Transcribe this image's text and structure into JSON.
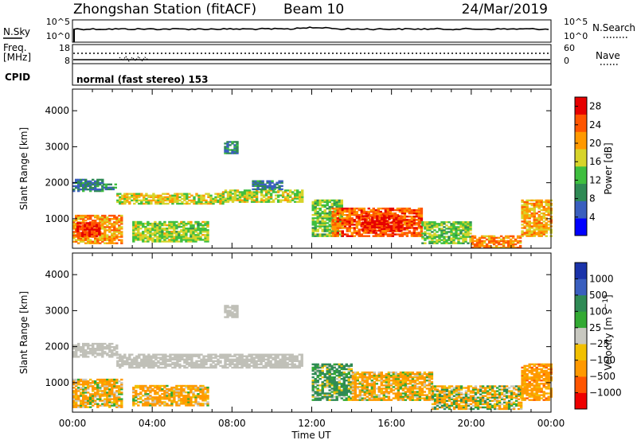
{
  "header": {
    "station": "Zhongshan Station (fitACF)",
    "beam": "Beam 10",
    "date": "24/Mar/2019"
  },
  "noise_panel": {
    "left_label": "N.Sky",
    "right_label": "N.Search",
    "left_ticks": [
      "10^5",
      "10^0"
    ],
    "right_ticks": [
      "10^5",
      "10^0"
    ]
  },
  "freq_panel": {
    "left_label_line1": "Freq.",
    "left_label_line2": "[MHz]",
    "right_label": "Nave",
    "left_ticks": [
      "18",
      "8"
    ],
    "right_ticks": [
      "60",
      "0"
    ]
  },
  "cpid": {
    "label": "CPID",
    "value": "normal (fast stereo) 153"
  },
  "colors": {
    "power_scale": [
      "#0000ff",
      "#3a5fbf",
      "#2f8a55",
      "#3fbf3f",
      "#d7d42a",
      "#ff9900",
      "#ff5500",
      "#e60000"
    ],
    "velocity_scale": [
      "#ee0000",
      "#ff5500",
      "#ff9900",
      "#f2c000",
      "#c8c8c0",
      "#33aa33",
      "#2f8a55",
      "#3a5fbf",
      "#1a33aa"
    ],
    "ground_scatter": "#c0c0b8"
  },
  "chart_data": [
    {
      "type": "heatmap",
      "title": "",
      "xlabel": "Time UT",
      "ylabel": "Slant Range [km]",
      "x_ticks": [
        "00:00",
        "04:00",
        "08:00",
        "12:00",
        "16:00",
        "20:00",
        "00:00"
      ],
      "y_ticks": [
        "1000",
        "2000",
        "3000",
        "4000"
      ],
      "xlim_hours": [
        0,
        24
      ],
      "ylim_km": [
        180,
        4600
      ],
      "colorbar": {
        "label": "Power [dB]",
        "ticks": [
          "4",
          "8",
          "12",
          "16",
          "20",
          "24",
          "28"
        ],
        "range": [
          0,
          30
        ]
      },
      "bands": [
        {
          "t0": 0.0,
          "t1": 1.5,
          "r0": 1750,
          "r1": 2100,
          "level": 8
        },
        {
          "t0": 1.5,
          "t1": 2.2,
          "r0": 1800,
          "r1": 1950,
          "level": 10
        },
        {
          "t0": 2.2,
          "t1": 7.5,
          "r0": 1400,
          "r1": 1700,
          "level": 17
        },
        {
          "t0": 7.5,
          "t1": 11.5,
          "r0": 1450,
          "r1": 1800,
          "level": 16
        },
        {
          "t0": 9.0,
          "t1": 10.5,
          "r0": 1800,
          "r1": 2050,
          "level": 8
        },
        {
          "t0": 0.0,
          "t1": 2.5,
          "r0": 300,
          "r1": 1100,
          "level": 21
        },
        {
          "t0": 0.2,
          "t1": 1.3,
          "r0": 500,
          "r1": 900,
          "level": 27
        },
        {
          "t0": 3.0,
          "t1": 6.8,
          "r0": 350,
          "r1": 900,
          "level": 15
        },
        {
          "t0": 7.6,
          "t1": 8.3,
          "r0": 2800,
          "r1": 3150,
          "level": 9
        },
        {
          "t0": 12.0,
          "t1": 13.5,
          "r0": 500,
          "r1": 1500,
          "level": 14
        },
        {
          "t0": 13.0,
          "t1": 17.5,
          "r0": 500,
          "r1": 1300,
          "level": 24
        },
        {
          "t0": 14.5,
          "t1": 16.5,
          "r0": 650,
          "r1": 1100,
          "level": 28
        },
        {
          "t0": 17.5,
          "t1": 20.0,
          "r0": 300,
          "r1": 900,
          "level": 14
        },
        {
          "t0": 20.0,
          "t1": 22.5,
          "r0": 180,
          "r1": 500,
          "level": 22
        },
        {
          "t0": 22.5,
          "t1": 24.0,
          "r0": 500,
          "r1": 1500,
          "level": 20
        }
      ]
    },
    {
      "type": "heatmap",
      "title": "",
      "xlabel": "Time UT",
      "ylabel": "Slant Range [km]",
      "x_ticks": [
        "00:00",
        "04:00",
        "08:00",
        "12:00",
        "16:00",
        "20:00",
        "00:00"
      ],
      "y_ticks": [
        "1000",
        "2000",
        "3000",
        "4000"
      ],
      "xlim_hours": [
        0,
        24
      ],
      "ylim_km": [
        180,
        4600
      ],
      "colorbar": {
        "label": "Velocity [m s^-1]",
        "ticks": [
          "1000",
          "500",
          "100",
          "25",
          "−25",
          "−100",
          "−500",
          "−1000"
        ]
      },
      "bands": [
        {
          "t0": 0.0,
          "t1": 2.2,
          "r0": 1700,
          "r1": 2100,
          "vel": 0,
          "ground": true
        },
        {
          "t0": 2.2,
          "t1": 11.5,
          "r0": 1400,
          "r1": 1800,
          "vel": 0,
          "ground": true
        },
        {
          "t0": 7.6,
          "t1": 8.3,
          "r0": 2800,
          "r1": 3150,
          "vel": 0,
          "ground": true
        },
        {
          "t0": 0.0,
          "t1": 2.5,
          "r0": 300,
          "r1": 1100,
          "vel": -150
        },
        {
          "t0": 3.0,
          "t1": 6.8,
          "r0": 350,
          "r1": 900,
          "vel": -200
        },
        {
          "t0": 12.0,
          "t1": 14.0,
          "r0": 500,
          "r1": 1500,
          "vel": 150
        },
        {
          "t0": 14.0,
          "t1": 18.0,
          "r0": 500,
          "r1": 1300,
          "vel": -150
        },
        {
          "t0": 18.0,
          "t1": 22.5,
          "r0": 250,
          "r1": 900,
          "vel": -60
        },
        {
          "t0": 22.5,
          "t1": 24.0,
          "r0": 500,
          "r1": 1500,
          "vel": -300
        }
      ]
    }
  ]
}
